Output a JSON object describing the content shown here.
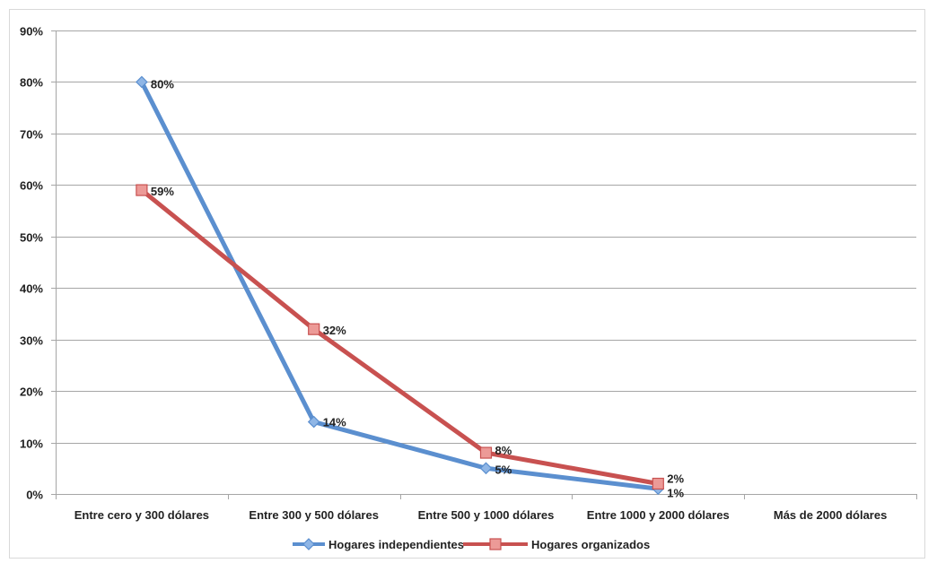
{
  "colors": {
    "series_1": "#5b8fcf",
    "series_1_marker": "#8fb6e6",
    "series_2": "#c85150",
    "series_2_marker": "#ec9a97",
    "grid": "#a6a6a6",
    "axis": "#a6a6a6"
  },
  "chart_data": {
    "type": "line",
    "title": "",
    "xlabel": "",
    "ylabel": "",
    "categories": [
      "Entre cero y 300 dólares",
      "Entre 300 y 500 dólares",
      "Entre 500 y 1000 dólares",
      "Entre 1000 y 2000 dólares",
      "Más de 2000 dólares"
    ],
    "ylim": [
      0,
      90
    ],
    "y_ticks": [
      "0%",
      "10%",
      "20%",
      "30%",
      "40%",
      "50%",
      "60%",
      "70%",
      "80%",
      "90%"
    ],
    "grid": true,
    "legend_position": "bottom",
    "series": [
      {
        "name": "Hogares independientes",
        "marker": "diamond",
        "values": [
          80,
          14,
          5,
          1,
          null
        ],
        "labels": [
          "80%",
          "14%",
          "5%",
          "1%",
          ""
        ]
      },
      {
        "name": "Hogares organizados",
        "marker": "square",
        "values": [
          59,
          32,
          8,
          2,
          null
        ],
        "labels": [
          "59%",
          "32%",
          "8%",
          "2%",
          ""
        ]
      }
    ]
  }
}
